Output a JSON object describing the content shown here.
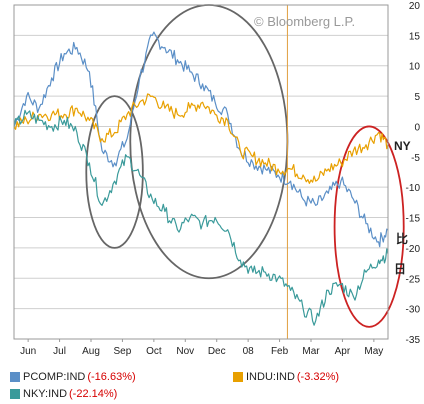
{
  "watermark": "© Bloomberg L.P.",
  "side_labels": {
    "ny": "NY",
    "jp_hi": "比",
    "jp_day": "日"
  },
  "legend": [
    {
      "id": "pcomp",
      "name": "PCOMP:IND",
      "change": "(-16.63%)",
      "color": "#5b8fc7"
    },
    {
      "id": "indu",
      "name": "INDU:IND",
      "change": "(-3.32%)",
      "color": "#e8a000"
    },
    {
      "id": "nky",
      "name": "NKY:IND",
      "change": "(-22.14%)",
      "color": "#3a9a9a"
    }
  ],
  "chart_data": {
    "type": "line",
    "title": "",
    "xlabel": "",
    "ylabel": "",
    "x": [
      "Jun",
      "Jul",
      "Aug",
      "Sep",
      "Oct",
      "Nov",
      "Dec",
      "08",
      "Feb",
      "Mar",
      "Apr",
      "May"
    ],
    "y_ticks": [
      20,
      15,
      10,
      5,
      0,
      -5,
      -10,
      -15,
      -20,
      -25,
      -30,
      -35
    ],
    "y_tick_labels": [
      "20",
      "15",
      "10",
      "5",
      "0",
      "-5",
      "-10",
      "-15",
      "-20",
      "-25",
      "-30",
      "-35"
    ],
    "ylim": [
      -35,
      20
    ],
    "xlim": [
      0,
      11.9
    ],
    "grid": true,
    "series": [
      {
        "name": "PCOMP:IND",
        "color": "#5b8fc7",
        "x": [
          0,
          0.4,
          0.8,
          1.2,
          1.6,
          2,
          2.4,
          2.8,
          3.2,
          3.6,
          4,
          4.4,
          4.8,
          5.2,
          5.6,
          6,
          6.4,
          6.8,
          7.2,
          7.6,
          8,
          8.4,
          8.8,
          9.2,
          9.6,
          10,
          10.4,
          10.8,
          11.2,
          11.6,
          11.9
        ],
        "y": [
          0,
          5,
          3,
          8,
          12,
          13,
          9,
          -4,
          -6,
          -2,
          8,
          15,
          13,
          11,
          9,
          7,
          4,
          2,
          -4,
          -6,
          -7,
          -8,
          -9,
          -12,
          -13,
          -11,
          -9,
          -12,
          -16,
          -19,
          -17
        ]
      },
      {
        "name": "INDU:IND",
        "color": "#e8a000",
        "x": [
          0,
          0.4,
          0.8,
          1.2,
          1.6,
          2,
          2.4,
          2.8,
          3.2,
          3.6,
          4,
          4.4,
          4.8,
          5.2,
          5.6,
          6,
          6.4,
          6.8,
          7.2,
          7.6,
          8,
          8.4,
          8.8,
          9.2,
          9.6,
          10,
          10.4,
          10.8,
          11.2,
          11.6,
          11.9
        ],
        "y": [
          0,
          1,
          2,
          2,
          2,
          3,
          1,
          -2,
          -1,
          2,
          4,
          5,
          3,
          2,
          3,
          4,
          2,
          1,
          -4,
          -5,
          -6,
          -7,
          -7,
          -8,
          -9,
          -7,
          -6,
          -4,
          -3,
          -1,
          -3
        ]
      },
      {
        "name": "NKY:IND",
        "color": "#3a9a9a",
        "x": [
          0,
          0.4,
          0.8,
          1.2,
          1.6,
          2,
          2.4,
          2.8,
          3.2,
          3.6,
          4,
          4.4,
          4.8,
          5.2,
          5.6,
          6,
          6.4,
          6.8,
          7.2,
          7.6,
          8,
          8.4,
          8.8,
          9.2,
          9.6,
          10,
          10.4,
          10.8,
          11.2,
          11.6,
          11.9
        ],
        "y": [
          0,
          2,
          1,
          0,
          1,
          -1,
          -6,
          -13,
          -9,
          -5,
          -8,
          -12,
          -14,
          -17,
          -15,
          -16,
          -15,
          -17,
          -22,
          -24,
          -24,
          -25,
          -27,
          -30,
          -32,
          -27,
          -26,
          -28,
          -24,
          -22,
          -21
        ]
      }
    ],
    "annotations": [
      {
        "type": "ellipse",
        "color": "#666666",
        "cx": 3.2,
        "cy": -7.5,
        "rx": 0.9,
        "ry": 12.5
      },
      {
        "type": "ellipse",
        "color": "#666666",
        "cx": 6.2,
        "cy": -2.5,
        "rx": 2.5,
        "ry": 22.5
      },
      {
        "type": "ellipse",
        "color": "#cc2222",
        "cx": 11.3,
        "cy": -16.5,
        "rx": 1.1,
        "ry": 16.5
      },
      {
        "type": "vline",
        "color": "#e0a040",
        "x": 8.7
      }
    ]
  }
}
